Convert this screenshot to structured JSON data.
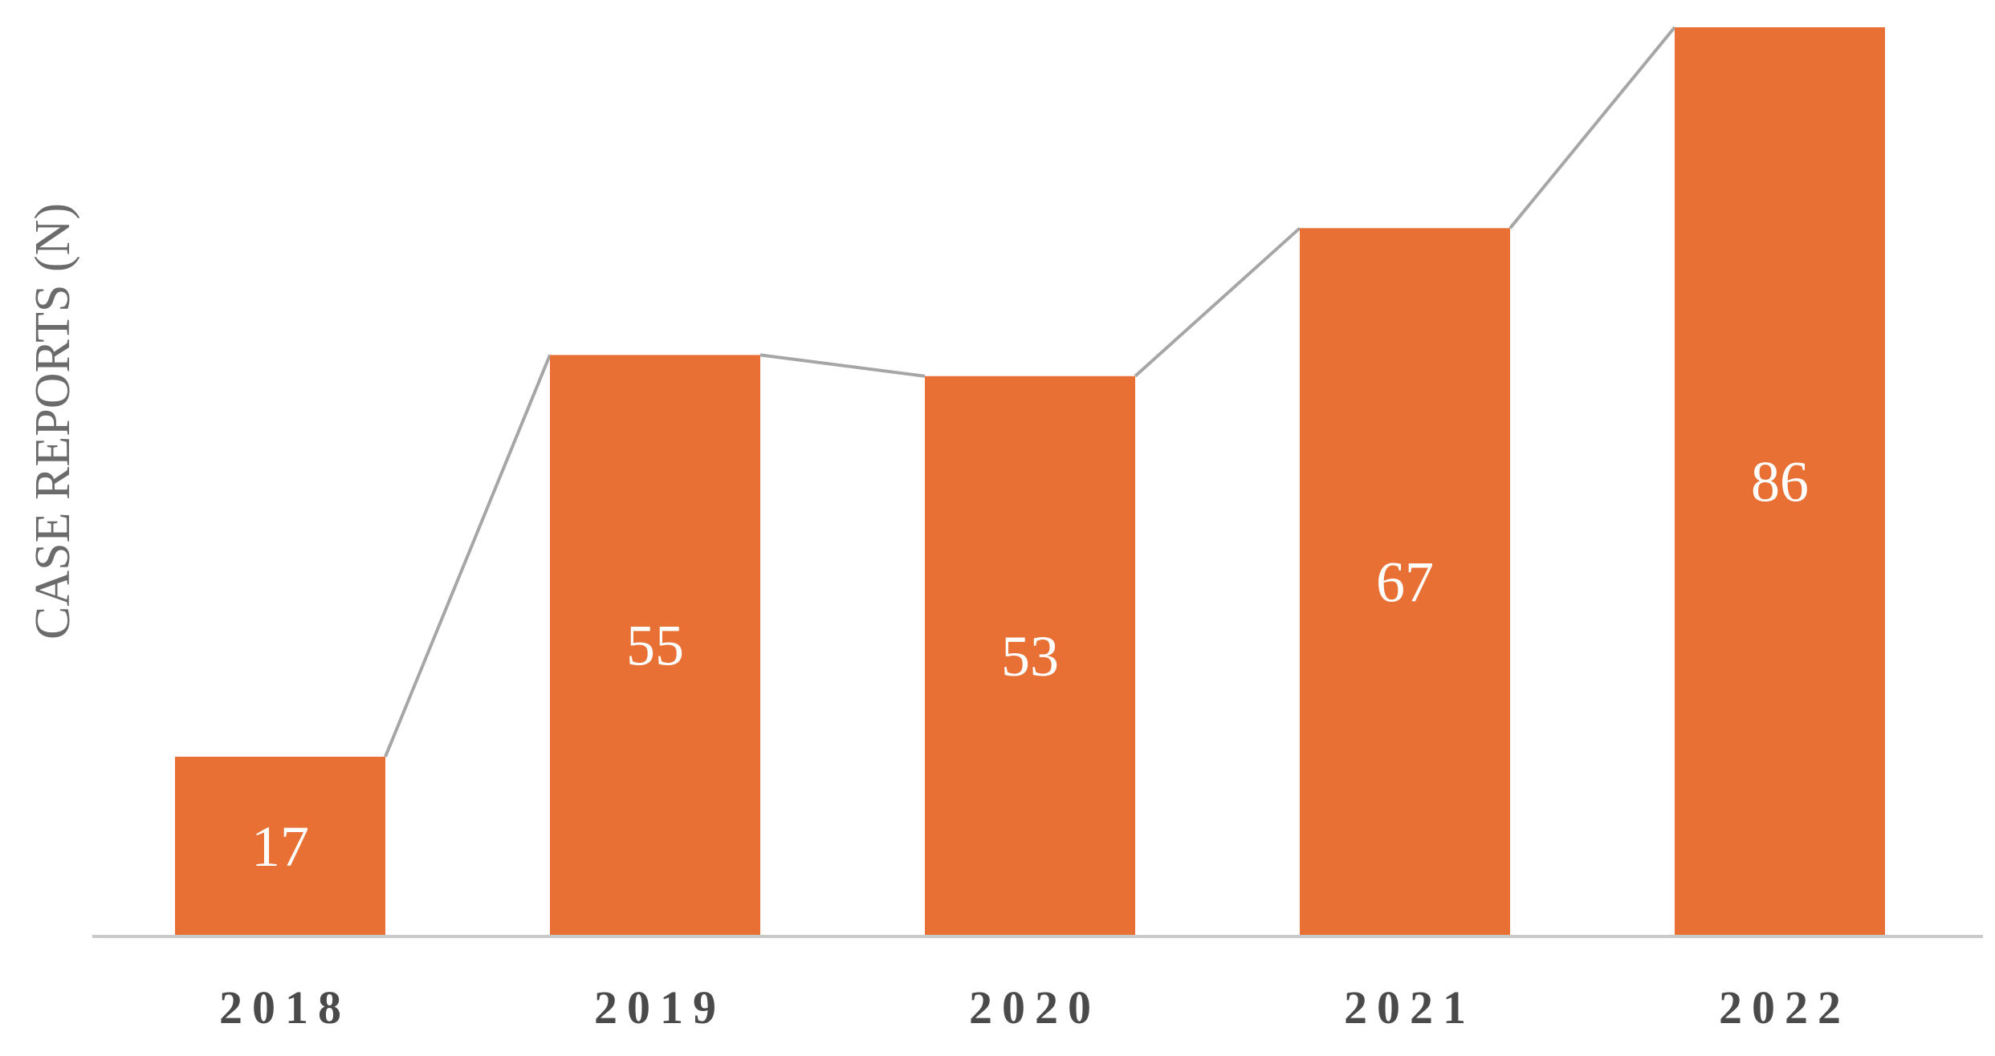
{
  "chart_data": {
    "type": "bar",
    "categories": [
      "2018",
      "2019",
      "2020",
      "2021",
      "2022"
    ],
    "values": [
      17,
      55,
      53,
      67,
      86
    ],
    "ylabel": "CASE REPORTS (N)",
    "xlabel": "",
    "ylim": [
      0,
      86
    ],
    "grid": false,
    "bar_color": "#E87034",
    "connector_color": "#A6A6A6",
    "axis_color": "#C9C9C9",
    "label_color": "#FFFFFF"
  }
}
